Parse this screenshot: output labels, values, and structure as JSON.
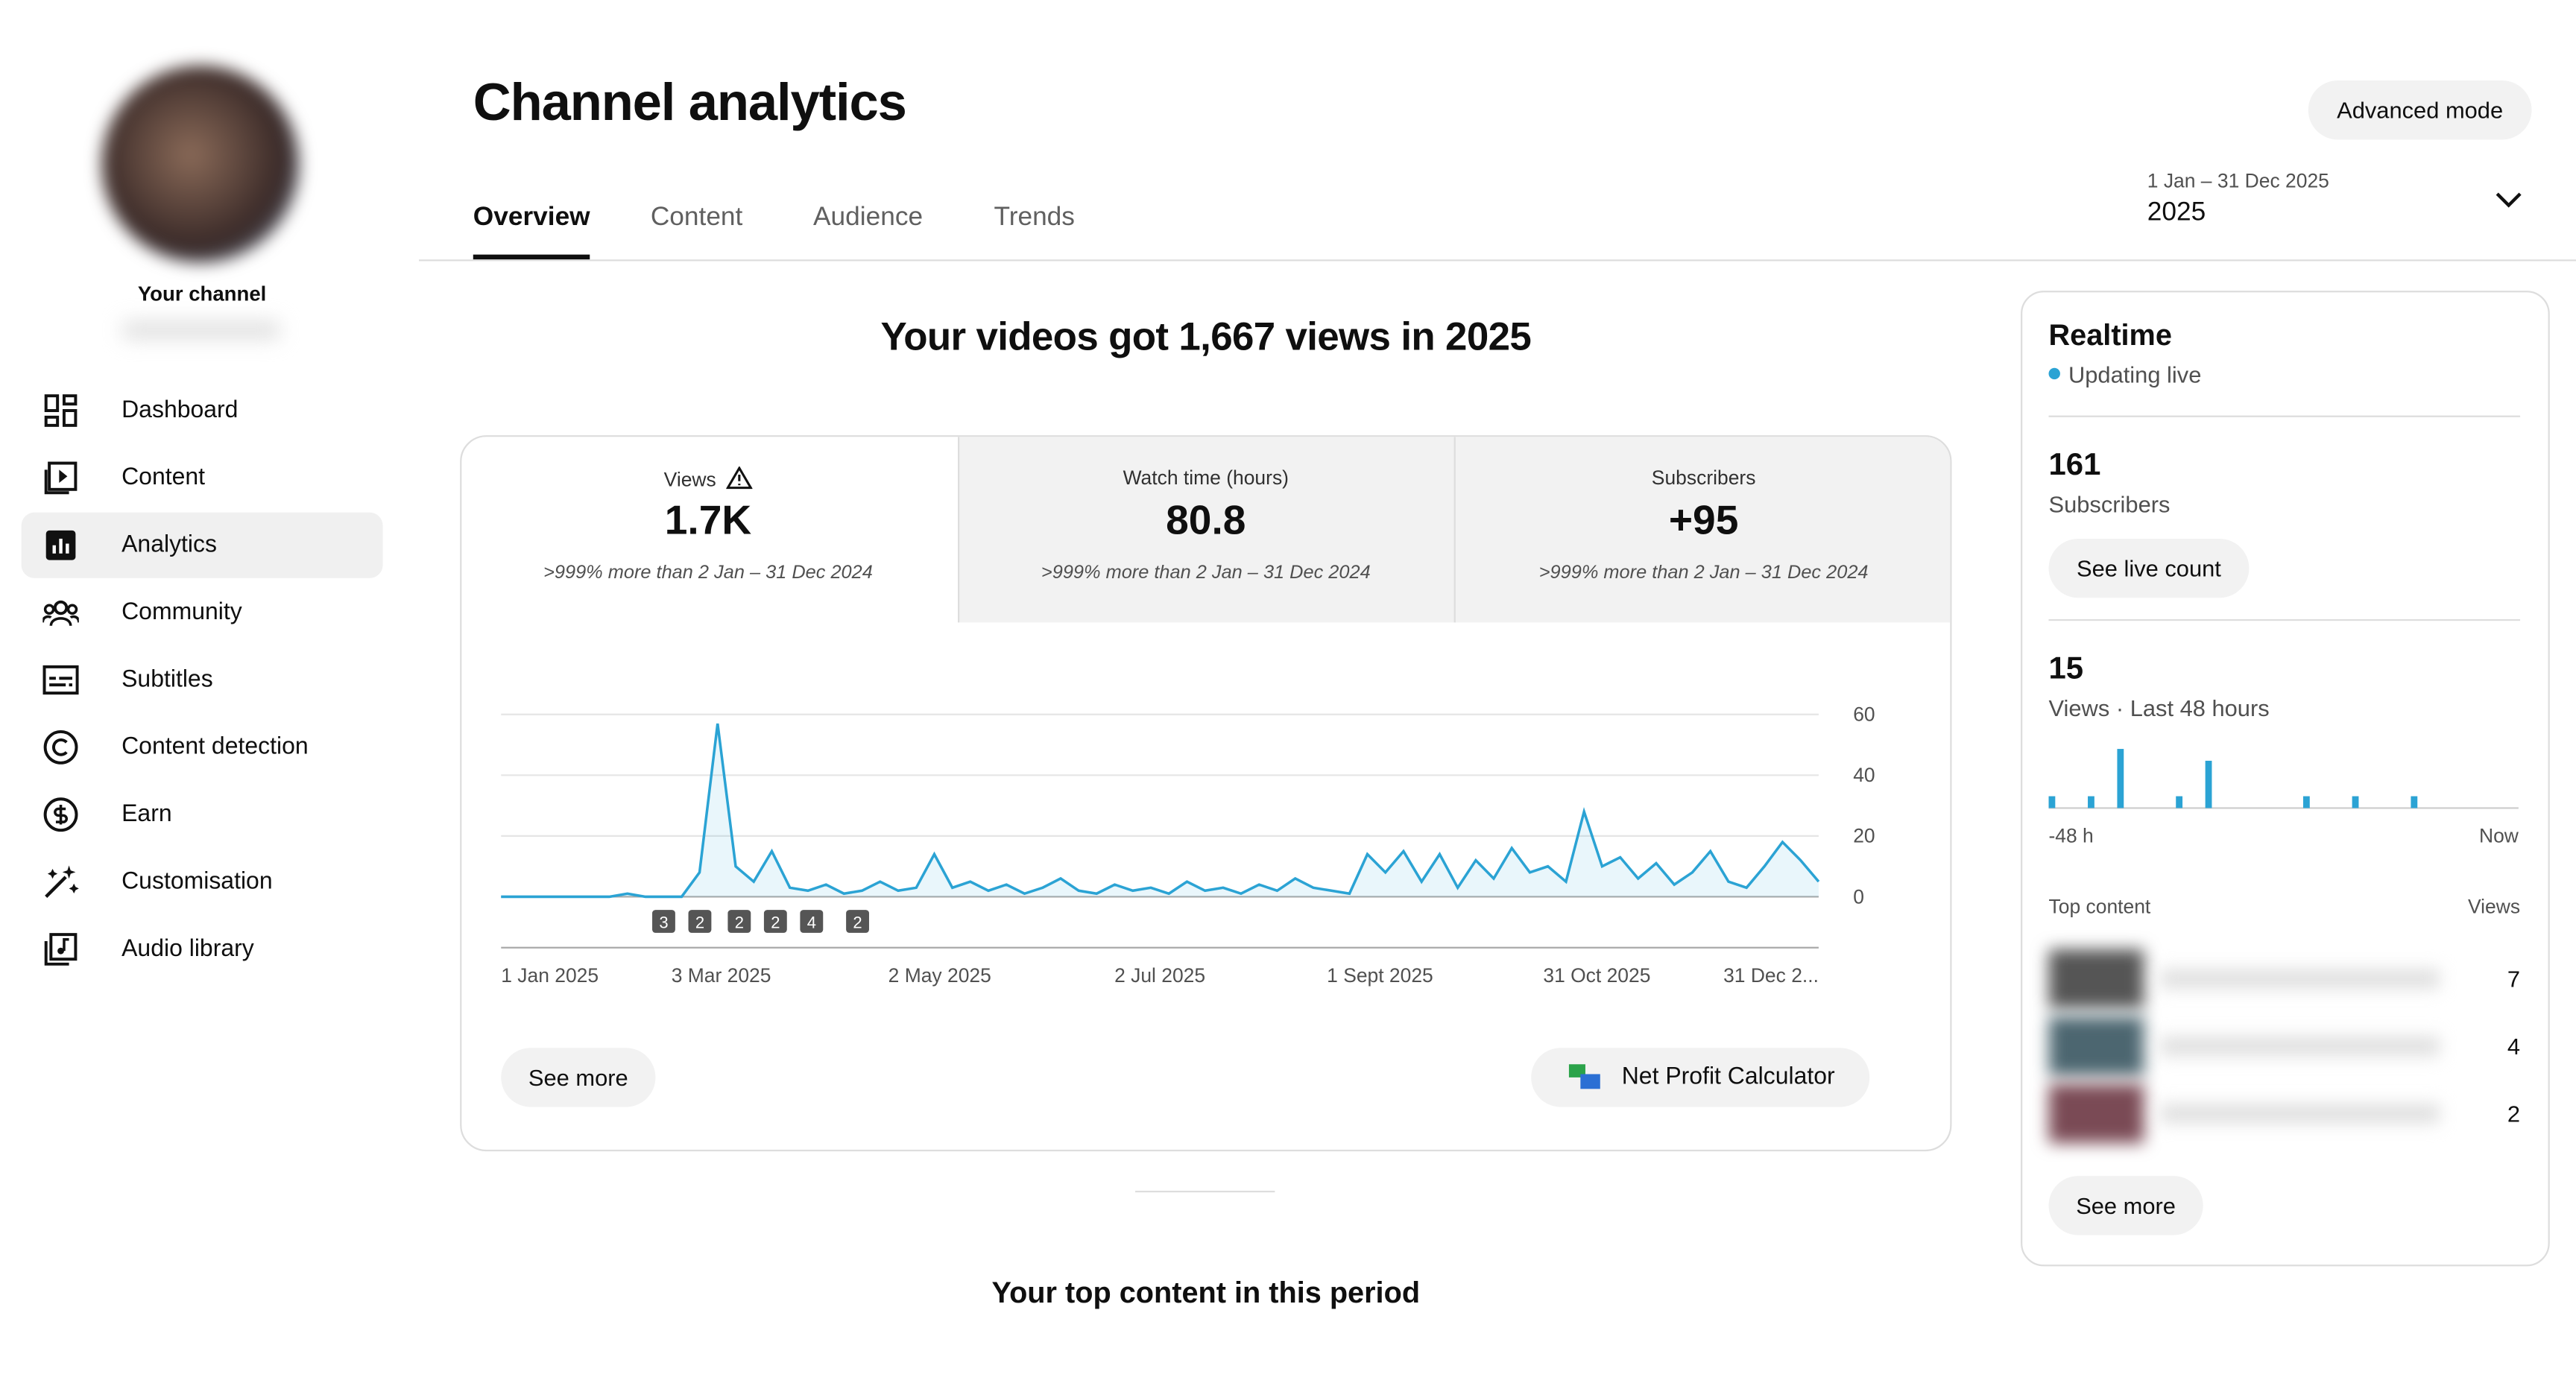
{
  "sidebar": {
    "channel_label": "Your channel",
    "nav": [
      "Dashboard",
      "Content",
      "Analytics",
      "Community",
      "Subtitles",
      "Content detection",
      "Earn",
      "Customisation",
      "Audio library"
    ],
    "active": 2
  },
  "header": {
    "title": "Channel analytics",
    "tabs": [
      "Overview",
      "Content",
      "Audience",
      "Trends"
    ],
    "active_tab": 0,
    "advanced_button": "Advanced mode",
    "date_range": {
      "label": "1 Jan – 31 Dec 2025",
      "value": "2025"
    }
  },
  "main": {
    "headline": "Your videos got 1,667 views in 2025",
    "metrics": [
      {
        "label": "Views",
        "value": "1.7K",
        "comparison": ">999% more than 2 Jan – 31 Dec 2024"
      },
      {
        "label": "Watch time (hours)",
        "value": "80.8",
        "comparison": ">999% more than 2 Jan – 31 Dec 2024"
      },
      {
        "label": "Subscribers",
        "value": "+95",
        "comparison": ">999% more than 2 Jan – 31 Dec 2024"
      }
    ],
    "chart_data": {
      "type": "line",
      "color": "#2ba3d4",
      "values": [
        0,
        0,
        0,
        0,
        0,
        0,
        0,
        1,
        0,
        0,
        0,
        8,
        57,
        10,
        5,
        15,
        3,
        2,
        4,
        1,
        2,
        5,
        2,
        3,
        14,
        3,
        5,
        2,
        4,
        1,
        3,
        6,
        2,
        1,
        4,
        2,
        3,
        1,
        5,
        2,
        3,
        1,
        4,
        2,
        6,
        3,
        2,
        1,
        14,
        8,
        15,
        5,
        14,
        3,
        12,
        6,
        16,
        8,
        10,
        5,
        28,
        10,
        13,
        6,
        11,
        4,
        8,
        15,
        5,
        3,
        10,
        18,
        12,
        5
      ],
      "ylim": [
        0,
        60
      ],
      "yticks": [
        0,
        20,
        40,
        60
      ],
      "grid": true,
      "x_labels": [
        "1 Jan 2025",
        "3 Mar 2025",
        "2 May 2025",
        "2 Jul 2025",
        "1 Sept 2025",
        "31 Oct 2025",
        "31 Dec 2..."
      ],
      "annotations": [
        "3",
        "2",
        "2",
        "2",
        "4",
        "2"
      ]
    },
    "see_more": "See more",
    "calculator_button": "Net Profit Calculator",
    "top_content_heading": "Your top content in this period"
  },
  "realtime": {
    "title": "Realtime",
    "status": "Updating live",
    "subscribers": {
      "value": "161",
      "label": "Subscribers"
    },
    "live_count_button": "See live count",
    "views": {
      "value": "15",
      "label": "Views · Last 48 hours"
    },
    "chart_data": {
      "type": "bar",
      "color": "#2ba3d4",
      "values": [
        1,
        0,
        0,
        0,
        1,
        0,
        0,
        5,
        0,
        0,
        0,
        0,
        0,
        1,
        0,
        0,
        4,
        0,
        0,
        0,
        0,
        0,
        0,
        0,
        0,
        0,
        1,
        0,
        0,
        0,
        0,
        1,
        0,
        0,
        0,
        0,
        0,
        1,
        0,
        0,
        0,
        0,
        0,
        0,
        0,
        0,
        0,
        0
      ],
      "x_labels": [
        "-48 h",
        "Now"
      ]
    },
    "top_content": {
      "label": "Top content",
      "column": "Views",
      "rows": [
        "7",
        "4",
        "2"
      ]
    },
    "see_more": "See more"
  }
}
